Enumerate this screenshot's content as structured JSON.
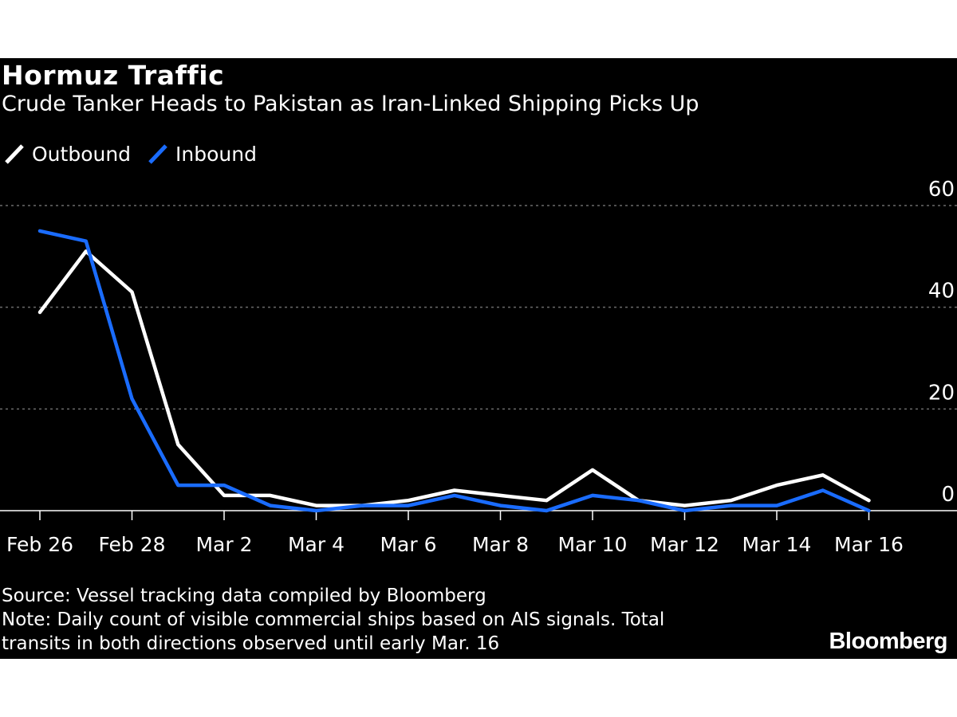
{
  "colors": {
    "background": "#000000",
    "outbound": "#ffffff",
    "inbound": "#1a6cff",
    "grid": "#6b6b6b",
    "text": "#ffffff"
  },
  "chart_data": {
    "type": "line",
    "title": "Hormuz Traffic",
    "subtitle": "Crude Tanker Heads to Pakistan as Iran-Linked Shipping Picks Up",
    "xlabel": "",
    "ylabel": "",
    "ylim": [
      0,
      60
    ],
    "yticks": [
      60,
      40,
      20,
      0
    ],
    "xticks": [
      "Feb 26",
      "Feb 28",
      "Mar 2",
      "Mar 4",
      "Mar 6",
      "Mar 8",
      "Mar 10",
      "Mar 12",
      "Mar 14",
      "Mar 16"
    ],
    "x": [
      "Feb 26",
      "Feb 27",
      "Feb 28",
      "Mar 1",
      "Mar 2",
      "Mar 3",
      "Mar 4",
      "Mar 5",
      "Mar 6",
      "Mar 7",
      "Mar 8",
      "Mar 9",
      "Mar 10",
      "Mar 11",
      "Mar 12",
      "Mar 13",
      "Mar 14",
      "Mar 15",
      "Mar 16"
    ],
    "series": [
      {
        "name": "Outbound",
        "color": "#ffffff",
        "values": [
          39,
          51,
          43,
          13,
          3,
          3,
          1,
          1,
          2,
          4,
          3,
          2,
          8,
          2,
          1,
          2,
          5,
          7,
          2
        ]
      },
      {
        "name": "Inbound",
        "color": "#1a6cff",
        "values": [
          55,
          53,
          22,
          5,
          5,
          1,
          0,
          1,
          1,
          3,
          1,
          0,
          3,
          2,
          0,
          1,
          1,
          4,
          0
        ]
      }
    ],
    "legend_position": "top-left",
    "grid": true
  },
  "footer": {
    "source": "Source: Vessel tracking data compiled by Bloomberg",
    "note_line1": "Note: Daily count of visible commercial ships based on AIS signals. Total",
    "note_line2": "transits in both directions observed until early Mar. 16",
    "logo": "Bloomberg"
  }
}
